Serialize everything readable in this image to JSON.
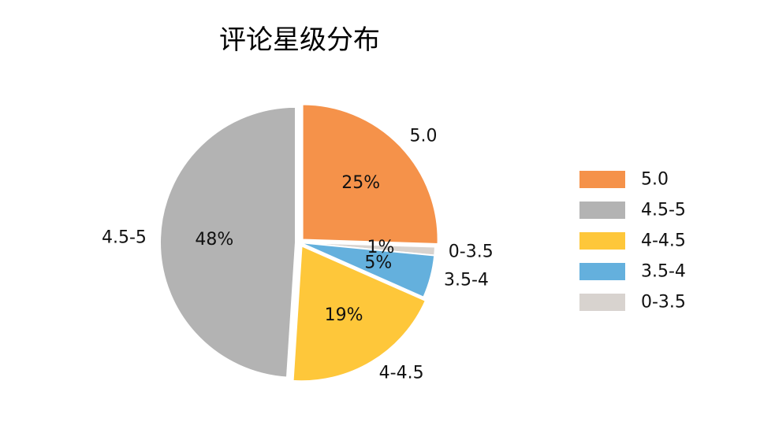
{
  "chart_data": {
    "type": "pie",
    "title": "评论星级分布",
    "start_angle_deg": 90,
    "direction": "clockwise",
    "slices": [
      {
        "label": "5.0",
        "value": 25,
        "pct_label": "25%",
        "color": "#F5924A",
        "explode": true
      },
      {
        "label": "0-3.5",
        "value": 1,
        "pct_label": "1%",
        "color": "#D8D3CF",
        "explode": false
      },
      {
        "label": "3.5-4",
        "value": 5,
        "pct_label": "5%",
        "color": "#64B0DD",
        "explode": false
      },
      {
        "label": "4-4.5",
        "value": 19,
        "pct_label": "19%",
        "color": "#FEC73A",
        "explode": true
      },
      {
        "label": "4.5-5",
        "value": 48,
        "pct_label": "48%",
        "color": "#B3B3B3",
        "explode": true
      }
    ],
    "legend": {
      "placement": "right",
      "entries": [
        {
          "label": "5.0",
          "color": "#F5924A"
        },
        {
          "label": "4.5-5",
          "color": "#B3B3B3"
        },
        {
          "label": "4-4.5",
          "color": "#FEC73A"
        },
        {
          "label": "3.5-4",
          "color": "#64B0DD"
        },
        {
          "label": "0-3.5",
          "color": "#D8D3CF"
        }
      ]
    }
  }
}
